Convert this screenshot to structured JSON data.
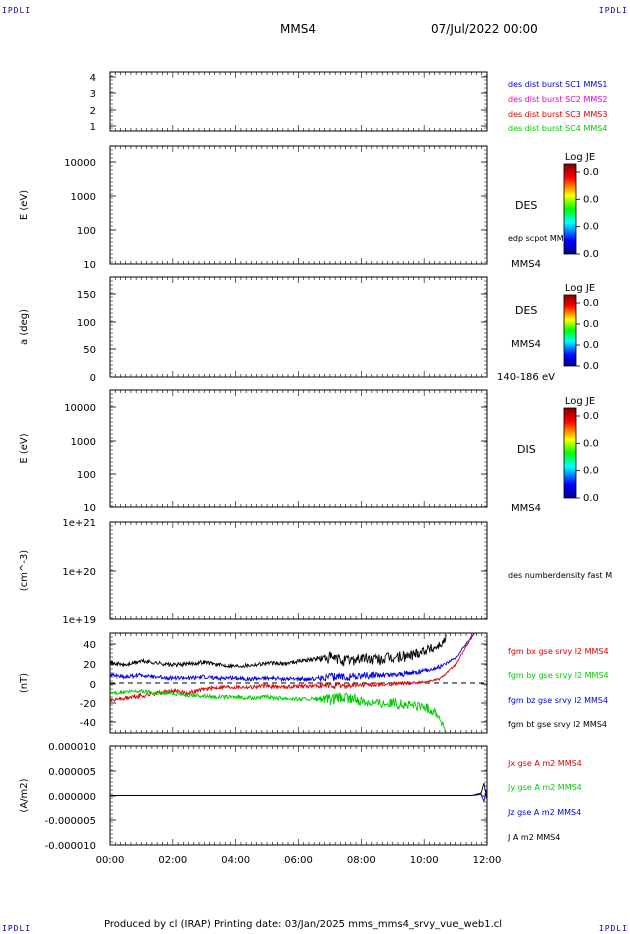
{
  "corners": {
    "tl": "IPDLI",
    "tr": "IPDLI",
    "bl": "IPDLI",
    "br": "IPDLI"
  },
  "header": {
    "spacecraft": "MMS4",
    "date": "07/Jul/2022 00:00"
  },
  "footer": {
    "text": "Produced by cl (IRAP)   Printing date: 03/Jan/2025   mms_mms4_srvy_vue_web1.cl"
  },
  "colors": {
    "black": "#000000",
    "blue": "#0000dd",
    "magenta": "#dd00dd",
    "red": "#dd0000",
    "green": "#00cc00"
  },
  "chart_data": [
    {
      "id": "p1",
      "type": "line",
      "ylabel": "",
      "yticks": [
        "4",
        "3",
        "2",
        "1"
      ],
      "ylim": [
        0.5,
        4.5
      ],
      "legend": [
        {
          "label": "des dist burst SC1 MMS1",
          "color": "#0000dd"
        },
        {
          "label": "des dist burst SC2 MMS2",
          "color": "#dd00dd"
        },
        {
          "label": "des dist burst SC3 MMS3",
          "color": "#dd0000"
        },
        {
          "label": "des dist burst SC4 MMS4",
          "color": "#00cc00"
        }
      ],
      "series": []
    },
    {
      "id": "p2",
      "type": "heatmap",
      "ylabel": "E (eV)",
      "yscale": "log",
      "yticks": [
        "10000",
        "1000",
        "100",
        "10"
      ],
      "ylim": [
        10,
        20000
      ],
      "side_labels": [
        "DES",
        "edp scpot MMS4",
        "MMS4"
      ],
      "colorbar": {
        "title": "Log JE",
        "ticks": [
          "0.0",
          "0.0",
          "0.0",
          "0.0"
        ]
      }
    },
    {
      "id": "p3",
      "type": "heatmap",
      "ylabel": "a (deg)",
      "yticks": [
        "150",
        "100",
        "50",
        "0"
      ],
      "ylim": [
        0,
        190
      ],
      "side_labels": [
        "DES",
        "MMS4",
        "140-186 eV"
      ],
      "colorbar": {
        "title": "Log JE",
        "ticks": [
          "0.0",
          "0.0",
          "0.0",
          "0.0"
        ]
      }
    },
    {
      "id": "p4",
      "type": "heatmap",
      "ylabel": "E (eV)",
      "yscale": "log",
      "yticks": [
        "10000",
        "1000",
        "100",
        "10"
      ],
      "ylim": [
        10,
        20000
      ],
      "side_labels": [
        "DIS",
        "MMS4"
      ],
      "colorbar": {
        "title": "Log JE",
        "ticks": [
          "0.0",
          "0.0",
          "0.0",
          "0.0"
        ]
      }
    },
    {
      "id": "p5",
      "type": "line",
      "ylabel": "(cm^-3)",
      "yscale": "log",
      "yticks": [
        "1e+21",
        "1e+20",
        "1e+19"
      ],
      "ylim": [
        1e+19,
        1e+21
      ],
      "legend": [
        {
          "label": "des numberdensity fast M",
          "color": "#000000"
        }
      ],
      "series": []
    },
    {
      "id": "p6",
      "type": "line",
      "ylabel": "(nT)",
      "yticks": [
        "40",
        "20",
        "0",
        "-20",
        "-40"
      ],
      "ylim": [
        -50,
        50
      ],
      "zero_line": true,
      "legend": [
        {
          "label": "fgm bx gse srvy l2 MMS4",
          "color": "#dd0000"
        },
        {
          "label": "fgm by gse srvy l2 MMS4",
          "color": "#00cc00"
        },
        {
          "label": "fgm bz gse srvy l2 MMS4",
          "color": "#0000dd"
        },
        {
          "label": "fgm bt gse srvy l2 MMS4",
          "color": "#000000"
        }
      ],
      "series": [
        {
          "color": "#000000",
          "x": [
            0,
            0.5,
            1,
            1.5,
            2,
            2.5,
            3,
            3.5,
            4,
            4.5,
            5,
            5.5,
            6,
            6.5,
            7,
            7.5,
            8,
            8.5,
            9,
            9.5,
            10,
            10.3,
            10.6,
            10.7
          ],
          "y": [
            20,
            18,
            22,
            20,
            18,
            19,
            21,
            18,
            17,
            18,
            20,
            19,
            22,
            24,
            25,
            22,
            25,
            23,
            25,
            27,
            33,
            35,
            40,
            45
          ],
          "noise": [
            2,
            2,
            2,
            2,
            2,
            2,
            2,
            2,
            2,
            2,
            2,
            2,
            2,
            2,
            6,
            6,
            6,
            6,
            6,
            6,
            5,
            5,
            4,
            4
          ]
        },
        {
          "color": "#0000dd",
          "x": [
            0,
            0.5,
            1,
            1.5,
            2,
            2.5,
            3,
            3.5,
            4,
            4.5,
            5,
            5.5,
            6,
            6.5,
            7,
            7.5,
            8,
            8.5,
            9,
            9.5,
            10,
            10.5,
            11,
            11.3,
            11.6
          ],
          "y": [
            8,
            6,
            8,
            6,
            5,
            5,
            6,
            5,
            5,
            4,
            5,
            4,
            4,
            4,
            6,
            6,
            7,
            8,
            8,
            10,
            12,
            16,
            25,
            38,
            50
          ],
          "noise": [
            2,
            2,
            2,
            2,
            2,
            2,
            2,
            2,
            2,
            2,
            2,
            2,
            2,
            2,
            4,
            4,
            4,
            3,
            3,
            3,
            2,
            2,
            1,
            1,
            1
          ]
        },
        {
          "color": "#dd0000",
          "x": [
            0,
            0.5,
            1,
            1.5,
            2,
            2.5,
            3,
            3.5,
            4,
            4.5,
            5,
            5.5,
            6,
            6.5,
            7,
            7.5,
            8,
            8.5,
            9,
            9.5,
            10,
            10.5,
            11,
            11.3,
            11.6
          ],
          "y": [
            -17,
            -15,
            -13,
            -10,
            -8,
            -10,
            -6,
            -4,
            -4,
            -4,
            -3,
            -4,
            -3,
            -3,
            -3,
            -3,
            -2,
            -2,
            -1,
            0,
            1,
            4,
            18,
            35,
            50
          ],
          "noise": [
            2,
            2,
            3,
            2,
            2,
            2,
            2,
            2,
            2,
            2,
            2,
            2,
            2,
            2,
            3,
            3,
            2,
            2,
            2,
            2,
            1,
            1,
            1,
            1,
            1
          ]
        },
        {
          "color": "#00cc00",
          "x": [
            0,
            0.5,
            1,
            1.5,
            2,
            2.5,
            3,
            3.5,
            4,
            4.5,
            5,
            5.5,
            6,
            6.5,
            7,
            7.5,
            8,
            8.5,
            9,
            9.5,
            10,
            10.4,
            10.7
          ],
          "y": [
            -10,
            -9,
            -8,
            -10,
            -10,
            -12,
            -13,
            -14,
            -14,
            -15,
            -14,
            -15,
            -16,
            -16,
            -17,
            -15,
            -18,
            -20,
            -20,
            -22,
            -24,
            -30,
            -48
          ],
          "noise": [
            2,
            2,
            2,
            2,
            2,
            2,
            2,
            2,
            2,
            2,
            2,
            2,
            2,
            2,
            6,
            6,
            5,
            5,
            5,
            5,
            5,
            5,
            3
          ]
        }
      ]
    },
    {
      "id": "p7",
      "type": "line",
      "ylabel": "(A/m2)",
      "yticks": [
        "0.000010",
        "0.000005",
        "0.000000",
        "-0.000005",
        "-0.000010"
      ],
      "ylim": [
        -1e-05,
        1e-05
      ],
      "xticks": [
        "00:00",
        "02:00",
        "04:00",
        "06:00",
        "08:00",
        "10:00",
        "12:00"
      ],
      "xlim": [
        0,
        12
      ],
      "legend": [
        {
          "label": "Jx gse A m2 MMS4",
          "color": "#dd0000"
        },
        {
          "label": "Jy gse A m2 MMS4",
          "color": "#00cc00"
        },
        {
          "label": "Jz gse A m2 MMS4",
          "color": "#0000dd"
        },
        {
          "label": "J A m2 MMS4",
          "color": "#000000"
        }
      ],
      "series": [
        {
          "color": "#0000dd",
          "x": [
            0,
            11.5,
            11.8,
            11.9,
            12.0
          ],
          "y": [
            0,
            0,
            5e-07,
            -1.2e-06,
            1.5e-06
          ]
        },
        {
          "color": "#000000",
          "x": [
            0,
            11.5,
            11.8,
            11.9,
            12.0
          ],
          "y": [
            0,
            0,
            2e-07,
            2.5e-06,
            -8e-07
          ]
        }
      ]
    }
  ]
}
